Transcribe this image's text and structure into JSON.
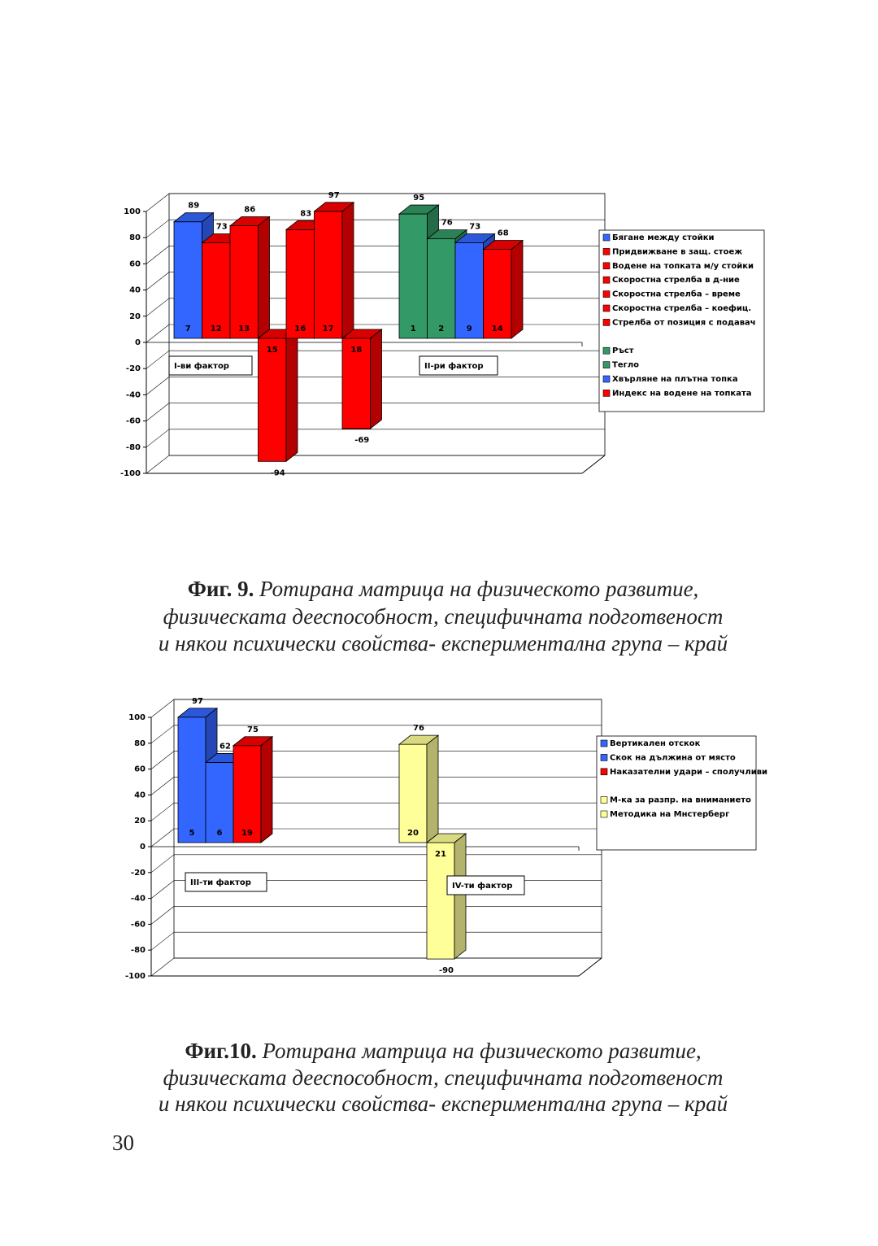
{
  "chart_data": [
    {
      "type": "bar3d",
      "ylim": [
        -100,
        100
      ],
      "yticks": [
        -100,
        -80,
        -60,
        -40,
        -20,
        0,
        20,
        40,
        60,
        80,
        100
      ],
      "grid": true,
      "legend": "right",
      "groups": [
        {
          "label": "I-ви фактор",
          "categories": [
            "7",
            "12",
            "13",
            "15",
            "16",
            "17",
            "18"
          ],
          "values": [
            89,
            73,
            86,
            -94,
            83,
            97,
            -69
          ],
          "colors": [
            "#3366ff",
            "#ff0000",
            "#ff0000",
            "#ff0000",
            "#ff0000",
            "#ff0000",
            "#ff0000"
          ],
          "names": [
            "Бягане между стойки",
            "Придвижване в защ. стоеж",
            "Водене на топката м/у стойки",
            "Скоростна стрелба в д-ние",
            "Скоростна стрелба – време",
            "Скоростна стрелба – коефиц.",
            "Стрелба от позиция с подавач"
          ]
        },
        {
          "label": "II-ри фактор",
          "categories": [
            "1",
            "2",
            "9",
            "14"
          ],
          "values": [
            95,
            76,
            73,
            68
          ],
          "colors": [
            "#339966",
            "#339966",
            "#3366ff",
            "#ff0000"
          ],
          "names": [
            "Ръст",
            "Тегло",
            "Хвърляне на плътна топка",
            "Индекс на водене на топката"
          ]
        }
      ]
    },
    {
      "type": "bar3d",
      "ylim": [
        -100,
        100
      ],
      "yticks": [
        -100,
        -80,
        -60,
        -40,
        -20,
        0,
        20,
        40,
        60,
        80,
        100
      ],
      "grid": true,
      "legend": "right",
      "groups": [
        {
          "label": "III-ти фактор",
          "categories": [
            "5",
            "6",
            "19"
          ],
          "values": [
            97,
            62,
            75
          ],
          "colors": [
            "#3366ff",
            "#3366ff",
            "#ff0000"
          ],
          "names": [
            "Вертикален отскок",
            "Скок на дължина от място",
            "Наказателни удари – сполучливи"
          ]
        },
        {
          "label": "IV-ти фактор",
          "categories": [
            "20",
            "21"
          ],
          "values": [
            76,
            -90
          ],
          "colors": [
            "#ffff99",
            "#ffff99"
          ],
          "names": [
            "М-ка за разпр. на вниманието",
            "Методика на Мнстерберг"
          ]
        }
      ]
    }
  ],
  "captions": [
    {
      "label": "Фиг. 9.",
      "lines": [
        "Ротирана матрица на физическото развитие,",
        "физическата дееспособност, специфичната подготвеност",
        "и някои психически свойства- експериментална група – край"
      ]
    },
    {
      "label": "Фиг.10.",
      "lines": [
        "Ротирана матрица на физическото развитие,",
        "физическата дееспособност, специфичната подготвеност",
        "и някои психически свойства- експериментална група – край"
      ]
    }
  ],
  "page_number": "30"
}
